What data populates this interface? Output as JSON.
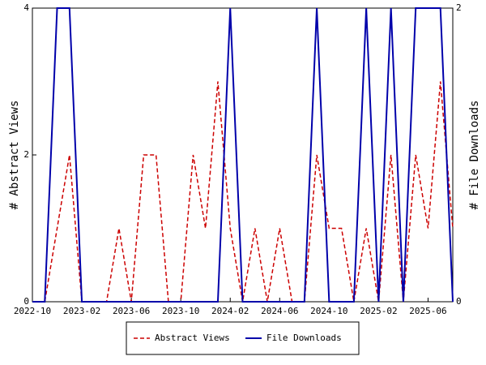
{
  "chart_data": {
    "type": "line",
    "categories": [
      "2022-10",
      null,
      null,
      null,
      "2023-02",
      null,
      null,
      null,
      "2023-06",
      null,
      null,
      null,
      "2023-10",
      null,
      null,
      null,
      "2024-02",
      null,
      null,
      null,
      "2024-06",
      null,
      null,
      null,
      "2024-10",
      null,
      null,
      null,
      "2025-02",
      null,
      null,
      null,
      "2025-06",
      null,
      null
    ],
    "ylabel": "# Abstract Views",
    "y2label": "# File Downloads",
    "ylim": [
      0,
      4
    ],
    "yticks": [
      0,
      2,
      4
    ],
    "y2lim": [
      0,
      2
    ],
    "y2ticks": [
      0,
      2
    ],
    "legend": "bottom",
    "series": [
      {
        "name": "Abstract Views",
        "color": "#cc0000",
        "dash": true,
        "values": [
          0,
          0,
          1,
          2,
          0,
          0,
          0,
          1,
          0,
          2,
          2,
          0,
          0,
          2,
          1,
          3,
          1,
          0,
          1,
          0,
          1,
          0,
          0,
          2,
          1,
          1,
          0,
          1,
          0,
          2,
          0,
          2,
          1,
          3,
          1
        ]
      },
      {
        "name": "File Downloads",
        "color": "#0000aa",
        "axis": "y2",
        "values": [
          0,
          0,
          2,
          2,
          0,
          0,
          0,
          0,
          0,
          0,
          0,
          0,
          0,
          0,
          0,
          0,
          2,
          0,
          0,
          0,
          0,
          0,
          0,
          2,
          0,
          0,
          0,
          2,
          0,
          2,
          0,
          2,
          2,
          2,
          0
        ]
      }
    ]
  }
}
